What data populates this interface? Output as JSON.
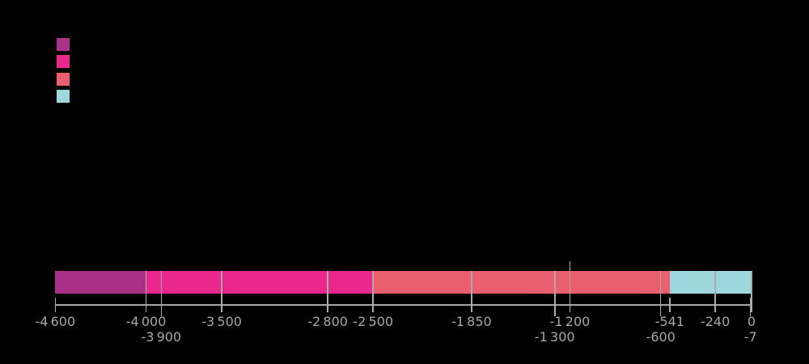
{
  "figure": {
    "background_color": "#000000"
  },
  "legend": {
    "position": "top-left",
    "swatches": [
      {
        "name": "legend-swatch-1",
        "color": "#A93288"
      },
      {
        "name": "legend-swatch-2",
        "color": "#E9278D"
      },
      {
        "name": "legend-swatch-3",
        "color": "#E95F6D"
      },
      {
        "name": "legend-swatch-4",
        "color": "#9ED8DC"
      }
    ]
  },
  "chart_data": {
    "type": "bar",
    "subtype": "horizontal-stacked-timeline",
    "orientation": "horizontal",
    "grid": false,
    "legend_position": "top-left",
    "axis_color": "#A7A7A7",
    "label_color": "#A7A7A7",
    "divider_color": "#ABABAB",
    "x_axis": {
      "min": -4600,
      "max": 0
    },
    "segments": [
      {
        "start": -4600,
        "end": -4000,
        "color": "#A93288"
      },
      {
        "start": -4000,
        "end": -2500,
        "color": "#E9278D"
      },
      {
        "start": -2500,
        "end": -541,
        "color": "#E95F6D"
      },
      {
        "start": -541,
        "end": 0,
        "color": "#9ED8DC"
      }
    ],
    "ticks": [
      {
        "value": -4600,
        "label": "-4 600",
        "row": 1,
        "through_bar": false
      },
      {
        "value": -4000,
        "label": "-4 000",
        "row": 1,
        "through_bar": true
      },
      {
        "value": -3900,
        "label": "-3 900",
        "row": 2,
        "through_bar": true
      },
      {
        "value": -3500,
        "label": "-3 500",
        "row": 1,
        "through_bar": true
      },
      {
        "value": -2800,
        "label": "-2 800",
        "row": 1,
        "through_bar": true
      },
      {
        "value": -2500,
        "label": "-2 500",
        "row": 1,
        "through_bar": true
      },
      {
        "value": -1850,
        "label": "-1 850",
        "row": 1,
        "through_bar": true
      },
      {
        "value": -1300,
        "label": "-1 300",
        "row": 2,
        "through_bar": true
      },
      {
        "value": -1200,
        "label": "-1 200",
        "row": 1,
        "through_bar": true,
        "extend_above": true
      },
      {
        "value": -600,
        "label": "-600",
        "row": 2,
        "through_bar": true
      },
      {
        "value": -541,
        "label": "-541",
        "row": 1,
        "through_bar": false
      },
      {
        "value": -240,
        "label": "-240",
        "row": 1,
        "through_bar": true
      },
      {
        "value": -7,
        "label": "-7",
        "row": 2,
        "through_bar": false
      },
      {
        "value": 0,
        "label": "0",
        "row": 1,
        "through_bar": true
      }
    ]
  }
}
